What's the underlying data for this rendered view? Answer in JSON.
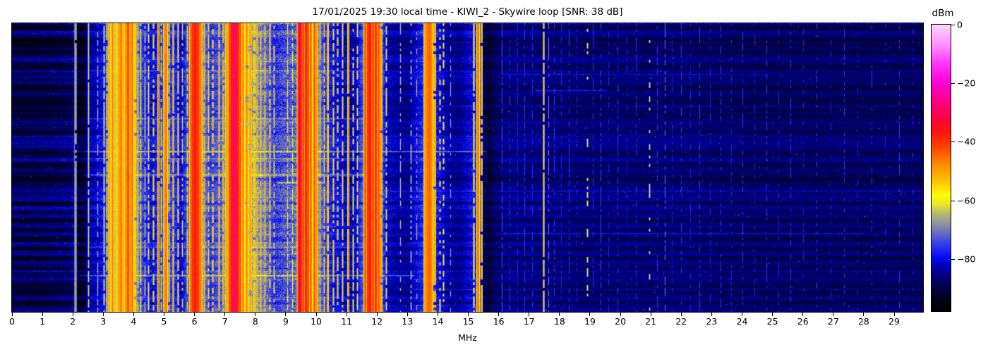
{
  "figure": {
    "background": "#ffffff",
    "frame_color": "#000000",
    "text_color": "#000000"
  },
  "header": {
    "datetime_local": "17/01/2025 19:30",
    "station": "KIWI_2",
    "antenna": "Skywire loop",
    "snr_db": 38
  },
  "axes": {
    "x_ticks": [
      0,
      1,
      2,
      3,
      4,
      5,
      6,
      7,
      8,
      9,
      10,
      11,
      12,
      13,
      14,
      15,
      16,
      17,
      18,
      19,
      20,
      21,
      22,
      23,
      24,
      25,
      26,
      27,
      28,
      29
    ],
    "colorbar_ticks": [
      {
        "label": "0",
        "value": 0
      },
      {
        "label": "−20",
        "value": -20
      },
      {
        "label": "−40",
        "value": -40
      },
      {
        "label": "−60",
        "value": -60
      },
      {
        "label": "−80",
        "value": -80
      }
    ]
  },
  "chart_data": {
    "type": "heatmap",
    "title": "17/01/2025 19:30 local time - KIWI_2 - Skywire loop [SNR: 38 dB]",
    "xlabel": "MHz",
    "colorbar_label": "dBm",
    "x_range_mhz": [
      0,
      29.95
    ],
    "value_range_dbm": [
      -97.8,
      0
    ],
    "legend_position": "right-colorbar",
    "grid": false,
    "texture_seed": 20250117,
    "colormap_stops": [
      [
        0.0,
        "#000000"
      ],
      [
        0.055,
        "#000028"
      ],
      [
        0.105,
        "#000060"
      ],
      [
        0.15,
        "#0000a8"
      ],
      [
        0.185,
        "#0008f0"
      ],
      [
        0.215,
        "#2028f8"
      ],
      [
        0.245,
        "#4048e0"
      ],
      [
        0.275,
        "#6870bc"
      ],
      [
        0.3,
        "#8c8ca4"
      ],
      [
        0.335,
        "#b0b07c"
      ],
      [
        0.375,
        "#e8e828"
      ],
      [
        0.405,
        "#ffff00"
      ],
      [
        0.455,
        "#ffc000"
      ],
      [
        0.515,
        "#ff8800"
      ],
      [
        0.575,
        "#ff4000"
      ],
      [
        0.625,
        "#ff1410"
      ],
      [
        0.675,
        "#ff0040"
      ],
      [
        0.735,
        "#ff0088"
      ],
      [
        0.795,
        "#ff00d0"
      ],
      [
        0.86,
        "#ff30ff"
      ],
      [
        0.925,
        "#ff8cfc"
      ],
      [
        1.0,
        "#ffd6fb"
      ]
    ],
    "noise_floor_profile_mhz_dbm": [
      [
        0,
        -90
      ],
      [
        1.0,
        -90
      ],
      [
        1.9,
        -88.5
      ],
      [
        2.02,
        -87
      ],
      [
        2.1,
        -90
      ],
      [
        2.2,
        -93
      ],
      [
        2.35,
        -92
      ],
      [
        2.5,
        -84
      ],
      [
        2.7,
        -83
      ],
      [
        3.0,
        -80
      ],
      [
        3.2,
        -72
      ],
      [
        3.5,
        -68
      ],
      [
        3.8,
        -66
      ],
      [
        4.1,
        -70
      ],
      [
        4.35,
        -77
      ],
      [
        4.6,
        -80
      ],
      [
        4.8,
        -78
      ],
      [
        5.0,
        -74
      ],
      [
        5.3,
        -76
      ],
      [
        5.55,
        -82
      ],
      [
        5.8,
        -72
      ],
      [
        5.95,
        -63
      ],
      [
        6.1,
        -63
      ],
      [
        6.3,
        -70
      ],
      [
        6.5,
        -76
      ],
      [
        6.7,
        -74
      ],
      [
        6.95,
        -72
      ],
      [
        7.1,
        -63
      ],
      [
        7.3,
        -56
      ],
      [
        7.5,
        -61
      ],
      [
        7.7,
        -66
      ],
      [
        8.0,
        -68
      ],
      [
        8.3,
        -70
      ],
      [
        8.6,
        -76
      ],
      [
        8.75,
        -75
      ],
      [
        9.0,
        -73
      ],
      [
        9.3,
        -72
      ],
      [
        9.45,
        -66
      ],
      [
        9.75,
        -64
      ],
      [
        10.0,
        -68
      ],
      [
        10.3,
        -76
      ],
      [
        10.6,
        -80
      ],
      [
        11.0,
        -82
      ],
      [
        11.3,
        -82
      ],
      [
        11.55,
        -72
      ],
      [
        11.8,
        -65
      ],
      [
        12.05,
        -67
      ],
      [
        12.3,
        -82
      ],
      [
        12.6,
        -84
      ],
      [
        13.0,
        -85
      ],
      [
        13.45,
        -78
      ],
      [
        13.7,
        -73
      ],
      [
        13.95,
        -79
      ],
      [
        14.3,
        -84
      ],
      [
        14.7,
        -85
      ],
      [
        15.05,
        -81
      ],
      [
        15.3,
        -77
      ],
      [
        15.5,
        -88
      ],
      [
        15.65,
        -92
      ],
      [
        15.85,
        -88
      ],
      [
        16.2,
        -86
      ],
      [
        17.0,
        -86
      ],
      [
        18.0,
        -86.5
      ],
      [
        19.0,
        -87
      ],
      [
        20.0,
        -87
      ],
      [
        21.0,
        -87
      ],
      [
        22.0,
        -87
      ],
      [
        23.0,
        -87.5
      ],
      [
        24.0,
        -88
      ],
      [
        25.0,
        -88
      ],
      [
        26.0,
        -88
      ],
      [
        27.0,
        -88
      ],
      [
        28.0,
        -88
      ],
      [
        29.0,
        -88
      ],
      [
        29.95,
        -88
      ]
    ],
    "carriers_mhz_dbm_width_duty": [
      [
        2.05,
        -70,
        1,
        1
      ],
      [
        2.08,
        -58,
        1,
        0.85
      ],
      [
        2.5,
        -60,
        1,
        0.9
      ],
      [
        2.8,
        -64,
        1,
        0.6
      ],
      [
        3.02,
        -58,
        1,
        0.8
      ],
      [
        3.12,
        -54,
        1,
        0.9
      ],
      [
        3.2,
        -50,
        2,
        1
      ],
      [
        3.3,
        -46,
        2,
        1
      ],
      [
        3.42,
        -52,
        2,
        1
      ],
      [
        3.5,
        -48,
        2,
        1
      ],
      [
        3.57,
        -44,
        2,
        1
      ],
      [
        3.65,
        -50,
        2,
        1
      ],
      [
        3.73,
        -46,
        2,
        1
      ],
      [
        3.8,
        -40,
        2,
        1
      ],
      [
        3.88,
        -48,
        2,
        1
      ],
      [
        3.95,
        -44,
        2,
        1
      ],
      [
        4.03,
        -52,
        2,
        0.9
      ],
      [
        4.12,
        -55,
        1,
        0.9
      ],
      [
        4.22,
        -57,
        1,
        0.8
      ],
      [
        4.35,
        -60,
        1,
        0.7
      ],
      [
        4.47,
        -57,
        1,
        0.8
      ],
      [
        4.65,
        -55,
        1,
        0.6
      ],
      [
        4.8,
        -44,
        1,
        0.95
      ],
      [
        4.9,
        -56,
        1,
        0.7
      ],
      [
        5.0,
        -48,
        2,
        1
      ],
      [
        5.06,
        -44,
        2,
        1
      ],
      [
        5.15,
        -54,
        1,
        0.85
      ],
      [
        5.3,
        -52,
        1,
        0.9
      ],
      [
        5.45,
        -53,
        1,
        0.8
      ],
      [
        5.6,
        -60,
        1,
        0.6
      ],
      [
        5.75,
        -56,
        1,
        0.7
      ],
      [
        5.88,
        -42,
        2,
        1
      ],
      [
        5.94,
        -37,
        2,
        1
      ],
      [
        6.0,
        -34,
        2,
        1
      ],
      [
        6.07,
        -38,
        2,
        1
      ],
      [
        6.13,
        -41,
        2,
        1
      ],
      [
        6.2,
        -45,
        2,
        1
      ],
      [
        6.3,
        -52,
        1,
        0.9
      ],
      [
        6.45,
        -56,
        1,
        0.7
      ],
      [
        6.6,
        -50,
        1,
        0.6
      ],
      [
        6.8,
        -52,
        1,
        0.9
      ],
      [
        6.93,
        -50,
        1,
        0.85
      ],
      [
        7.05,
        -48,
        2,
        1
      ],
      [
        7.15,
        -40,
        2,
        1
      ],
      [
        7.21,
        -34,
        2,
        1
      ],
      [
        7.3,
        -22,
        2,
        1
      ],
      [
        7.36,
        -32,
        2,
        1
      ],
      [
        7.42,
        -37,
        2,
        1
      ],
      [
        7.49,
        -42,
        2,
        1
      ],
      [
        7.58,
        -46,
        2,
        1
      ],
      [
        7.7,
        -46,
        2,
        0.95
      ],
      [
        7.82,
        -49,
        2,
        0.9
      ],
      [
        7.95,
        -52,
        2,
        0.9
      ],
      [
        8.05,
        -51,
        1,
        0.9
      ],
      [
        8.17,
        -54,
        1,
        0.85
      ],
      [
        8.3,
        -53,
        1,
        0.85
      ],
      [
        8.46,
        -52,
        1,
        0.8
      ],
      [
        8.6,
        -56,
        1,
        0.7
      ],
      [
        9.05,
        -60,
        1,
        0.7
      ],
      [
        9.2,
        -58,
        1,
        0.7
      ],
      [
        9.41,
        -36,
        2,
        1
      ],
      [
        9.47,
        -30,
        2,
        1
      ],
      [
        9.55,
        -40,
        2,
        1
      ],
      [
        9.64,
        -36,
        2,
        1
      ],
      [
        9.73,
        -40,
        2,
        1
      ],
      [
        9.82,
        -43,
        2,
        1
      ],
      [
        9.92,
        -42,
        2,
        1
      ],
      [
        10.0,
        -48,
        2,
        1
      ],
      [
        10.12,
        -54,
        1,
        0.9
      ],
      [
        10.25,
        -56,
        1,
        0.8
      ],
      [
        10.38,
        -46,
        1,
        0.95
      ],
      [
        10.55,
        -56,
        1,
        0.7
      ],
      [
        10.7,
        -54,
        1,
        0.6
      ],
      [
        10.85,
        -57,
        1,
        0.7
      ],
      [
        11.05,
        -44,
        1,
        0.95
      ],
      [
        11.2,
        -57,
        1,
        0.7
      ],
      [
        11.35,
        -58,
        1,
        0.7
      ],
      [
        11.6,
        -42,
        2,
        1
      ],
      [
        11.69,
        -37,
        2,
        1
      ],
      [
        11.77,
        -34,
        2,
        1
      ],
      [
        11.86,
        -40,
        2,
        1
      ],
      [
        11.94,
        -37,
        2,
        1
      ],
      [
        12.03,
        -42,
        2,
        1
      ],
      [
        12.12,
        -48,
        2,
        0.95
      ],
      [
        12.3,
        -58,
        1,
        0.7
      ],
      [
        12.75,
        -64,
        1,
        0.5
      ],
      [
        13.1,
        -62,
        1,
        0.5
      ],
      [
        13.3,
        -64,
        1,
        0.4
      ],
      [
        13.57,
        -48,
        2,
        1
      ],
      [
        13.64,
        -44,
        2,
        1
      ],
      [
        13.71,
        -42,
        2,
        1
      ],
      [
        13.79,
        -46,
        2,
        1
      ],
      [
        13.87,
        -50,
        2,
        0.9
      ],
      [
        14.05,
        -54,
        1,
        0.45
      ],
      [
        14.18,
        -56,
        1,
        0.4
      ],
      [
        14.4,
        -66,
        1,
        0.4
      ],
      [
        15.18,
        -52,
        1,
        0.9
      ],
      [
        15.3,
        -44,
        2,
        1
      ],
      [
        15.42,
        -48,
        1,
        0.9
      ],
      [
        16.1,
        -73,
        1,
        0.7
      ],
      [
        16.35,
        -75,
        1,
        0.6
      ],
      [
        16.6,
        -77,
        1,
        0.5
      ],
      [
        16.85,
        -75,
        1,
        0.6
      ],
      [
        17.1,
        -76,
        1,
        0.5
      ],
      [
        17.48,
        -54,
        1,
        0.95
      ],
      [
        17.62,
        -70,
        1,
        0.6
      ],
      [
        17.82,
        -75,
        1,
        0.5
      ],
      [
        18.05,
        -77,
        1,
        0.5
      ],
      [
        18.3,
        -75,
        1,
        0.5
      ],
      [
        18.55,
        -77,
        1,
        0.4
      ],
      [
        18.9,
        -58,
        1,
        0.22
      ],
      [
        19.1,
        -76,
        1,
        0.5
      ],
      [
        19.35,
        -74,
        1,
        0.5
      ],
      [
        19.6,
        -77,
        1,
        0.4
      ],
      [
        19.9,
        -75,
        1,
        0.5
      ],
      [
        20.2,
        -77,
        1,
        0.4
      ],
      [
        20.5,
        -75,
        1,
        0.45
      ],
      [
        20.95,
        -60,
        1,
        0.25
      ],
      [
        21.2,
        -75,
        1,
        0.4
      ],
      [
        21.45,
        -70,
        1,
        0.5
      ],
      [
        21.7,
        -77,
        1,
        0.4
      ],
      [
        22.0,
        -75,
        1,
        0.45
      ],
      [
        22.3,
        -77,
        1,
        0.4
      ],
      [
        22.6,
        -75,
        1,
        0.4
      ],
      [
        22.95,
        -77,
        1,
        0.35
      ],
      [
        23.3,
        -75,
        1,
        0.4
      ],
      [
        23.65,
        -77,
        1,
        0.35
      ],
      [
        24.0,
        -75,
        1,
        0.4
      ],
      [
        24.4,
        -77,
        1,
        0.35
      ],
      [
        24.8,
        -75,
        1,
        0.4
      ],
      [
        25.2,
        -77,
        1,
        0.35
      ],
      [
        25.6,
        -75,
        1,
        0.4
      ],
      [
        26.0,
        -77,
        1,
        0.35
      ],
      [
        26.45,
        -75,
        1,
        0.35
      ],
      [
        26.9,
        -77,
        1,
        0.3
      ],
      [
        27.35,
        -75,
        1,
        0.35
      ],
      [
        27.8,
        -77,
        1,
        0.3
      ],
      [
        28.25,
        -75,
        1,
        0.35
      ],
      [
        28.7,
        -77,
        1,
        0.3
      ],
      [
        29.15,
        -75,
        1,
        0.35
      ],
      [
        29.6,
        -77,
        1,
        0.3
      ]
    ],
    "time_streaks_yfrac_f0_f1_boost_rows": [
      [
        0.0,
        0,
        29.95,
        6,
        1
      ],
      [
        0.066,
        13.5,
        29.95,
        5,
        1
      ],
      [
        0.164,
        2.5,
        12.1,
        5,
        1
      ],
      [
        0.175,
        16,
        25,
        6,
        1
      ],
      [
        0.233,
        17.2,
        19.5,
        8,
        2
      ],
      [
        0.287,
        13.5,
        29.95,
        7,
        1
      ],
      [
        0.33,
        2.2,
        12.1,
        6,
        2
      ],
      [
        0.385,
        16,
        24,
        7,
        1
      ],
      [
        0.446,
        2.0,
        15.6,
        13,
        2
      ],
      [
        0.47,
        2.3,
        12.2,
        7,
        1
      ],
      [
        0.525,
        2.4,
        12.1,
        9,
        3
      ],
      [
        0.553,
        8.7,
        10.2,
        10,
        2
      ],
      [
        0.581,
        12.2,
        29.95,
        6,
        1
      ],
      [
        0.63,
        2.2,
        29.95,
        5,
        1
      ],
      [
        0.728,
        16,
        28,
        6,
        1
      ],
      [
        0.777,
        2.5,
        12,
        7,
        2
      ],
      [
        0.875,
        2.2,
        13.2,
        10,
        2
      ],
      [
        0.924,
        13,
        29.95,
        6,
        1
      ],
      [
        0.978,
        2.4,
        29.95,
        7,
        1
      ]
    ],
    "fuzzy_zones_mhz": [
      [
        8.65,
        9.4
      ]
    ],
    "left_dark_band_limit_mhz": 2.35
  }
}
